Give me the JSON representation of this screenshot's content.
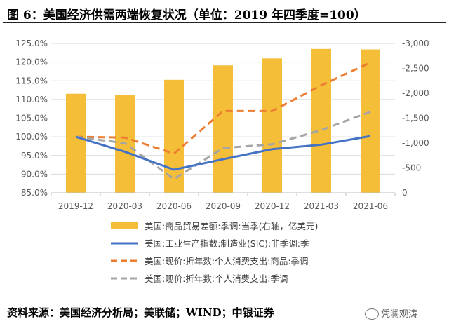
{
  "header": {
    "title": "图 6：美国经济供需两端恢复状况（单位：2019 年四季度=100）"
  },
  "footer": {
    "source": "资料来源：美国经济分析局；美联储；WIND；中银证券",
    "watermark": "凭澜观涛"
  },
  "chart_data": {
    "type": "bar+line",
    "categories": [
      "2019-12",
      "2020-03",
      "2020-06",
      "2020-09",
      "2020-12",
      "2021-03",
      "2021-06"
    ],
    "left_axis": {
      "min": 85,
      "max": 125,
      "step": 5,
      "tick_labels": [
        "85.0%",
        "90.0%",
        "95.0%",
        "100.0%",
        "105.0%",
        "110.0%",
        "115.0%",
        "120.0%",
        "125.0%"
      ]
    },
    "right_axis": {
      "min": 0,
      "max": -3000,
      "step": -500,
      "reversed": true,
      "tick_labels": [
        "0",
        "-500",
        "-1,000",
        "-1,500",
        "-2,000",
        "-2,500",
        "-3,000"
      ]
    },
    "series": [
      {
        "name": "美国:商品贸易差额:季调:当季(右轴，亿美元)",
        "kind": "bar",
        "axis": "right",
        "color": "#F4BE38",
        "values": [
          -1990,
          -1970,
          -2270,
          -2560,
          -2700,
          -2890,
          -2880
        ]
      },
      {
        "name": "美国:工业生产指数:制造业(SIC):非季调:季",
        "kind": "line",
        "axis": "left",
        "color": "#4472C4",
        "dash": "solid",
        "values": [
          100.0,
          96.0,
          91.2,
          94.0,
          96.7,
          97.9,
          100.2
        ]
      },
      {
        "name": "美国:现价:折年数:个人消费支出:商品:季调",
        "kind": "line",
        "axis": "left",
        "color": "#ED7D31",
        "dash": "dashed",
        "values": [
          100.0,
          99.8,
          95.5,
          106.9,
          106.9,
          113.8,
          119.9
        ]
      },
      {
        "name": "美国:现价:折年数:个人消费支出:季调",
        "kind": "line",
        "axis": "left",
        "color": "#A5A5A5",
        "dash": "dashed",
        "values": [
          100.0,
          98.3,
          88.7,
          97.0,
          98.0,
          101.8,
          106.7
        ]
      }
    ]
  }
}
